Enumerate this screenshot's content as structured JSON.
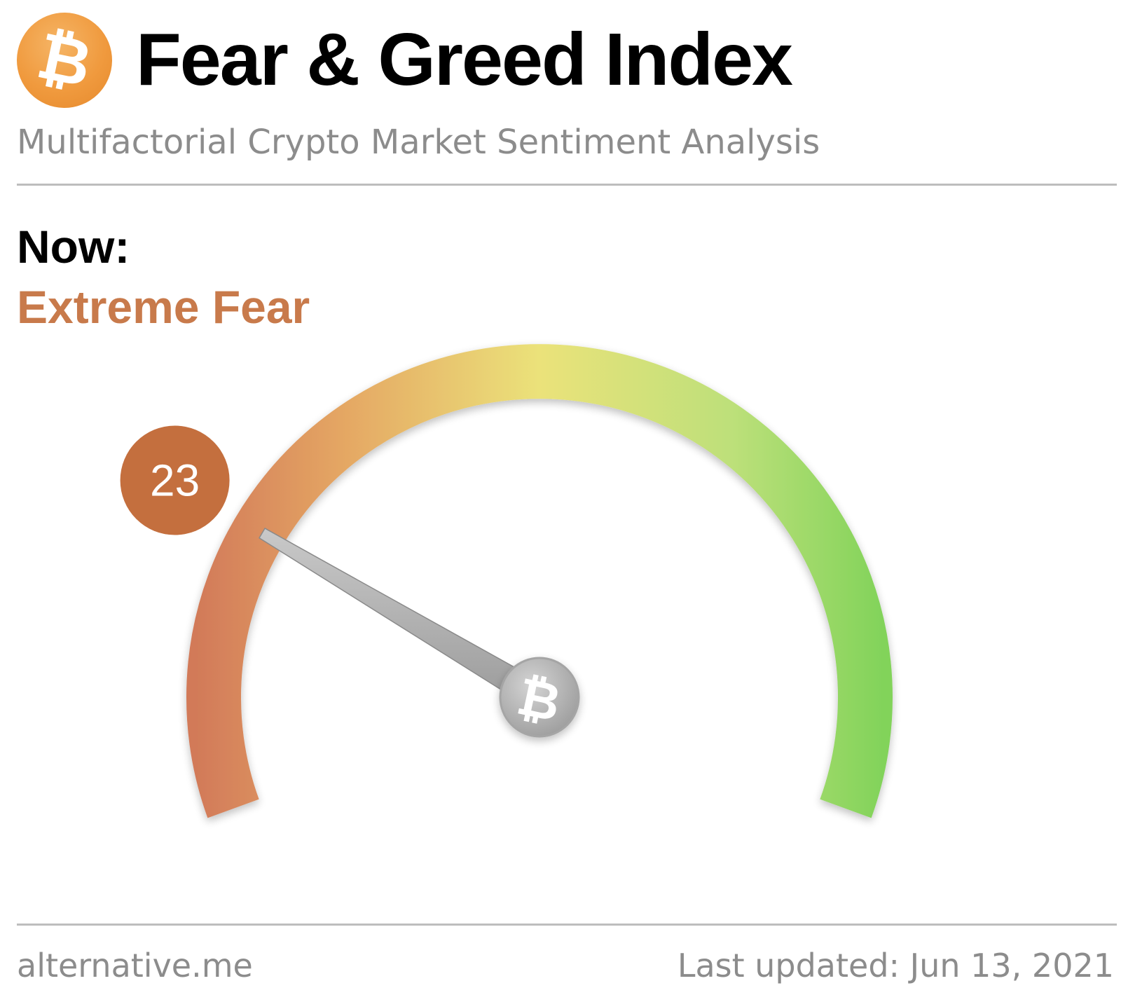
{
  "header": {
    "logo_icon": "bitcoin-icon",
    "logo_symbol": "₿",
    "title": "Fear & Greed Index",
    "subtitle": "Multifactorial Crypto Market Sentiment Analysis"
  },
  "current": {
    "label": "Now:",
    "classification": "Extreme Fear",
    "value": 23,
    "value_text": "23"
  },
  "gauge": {
    "min": 0,
    "max": 100,
    "hub_symbol": "₿",
    "hub_icon": "bitcoin-icon"
  },
  "footer": {
    "source": "alternative.me",
    "last_updated": "Last updated: Jun 13, 2021"
  },
  "colors": {
    "brand_orange": "#f09a3e",
    "fear_accent": "#c87a4b",
    "badge": "#c46f3e",
    "gauge_fear": "#d27a59",
    "gauge_neutral": "#ebe27a",
    "gauge_greed": "#82d35a",
    "muted_text": "#8c8c8c",
    "divider": "#bdbdbd"
  }
}
